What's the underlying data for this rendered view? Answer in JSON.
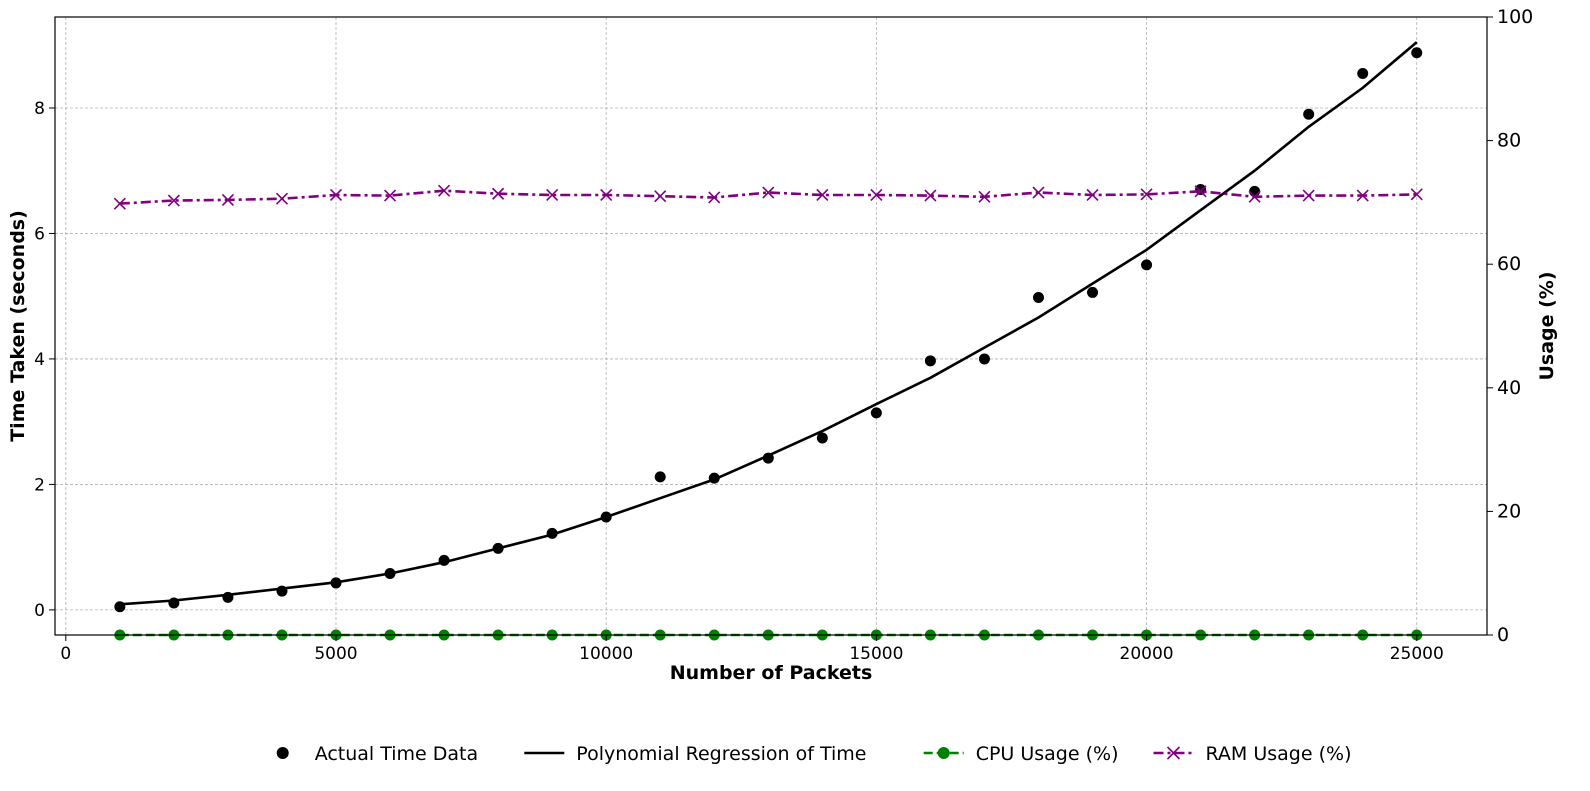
{
  "chart_data": {
    "type": "line",
    "title": "",
    "xlabel": "Number of Packets",
    "ylabel_left": "Time Taken (seconds)",
    "ylabel_right": "Usage (%)",
    "xlim": [
      -200,
      26300
    ],
    "ylim_left": [
      -0.4,
      9.45
    ],
    "ylim_right": [
      0,
      100
    ],
    "xticks": [
      0,
      5000,
      10000,
      15000,
      20000,
      25000
    ],
    "yticks_left": [
      0,
      2,
      4,
      6,
      8
    ],
    "yticks_right": [
      0,
      20,
      40,
      60,
      80,
      100
    ],
    "grid": true,
    "legend_position": "bottom-center",
    "x": [
      1000,
      2000,
      3000,
      4000,
      5000,
      6000,
      7000,
      8000,
      9000,
      10000,
      11000,
      12000,
      13000,
      14000,
      15000,
      16000,
      17000,
      18000,
      19000,
      20000,
      21000,
      22000,
      23000,
      24000,
      25000
    ],
    "series": [
      {
        "name": "Actual Time Data",
        "axis": "left",
        "style": "scatter",
        "color": "#000000",
        "values": [
          0.05,
          0.11,
          0.2,
          0.3,
          0.43,
          0.58,
          0.79,
          0.98,
          1.22,
          1.48,
          2.12,
          2.1,
          2.42,
          2.74,
          3.14,
          3.97,
          4.0,
          4.98,
          5.06,
          5.5,
          6.7,
          6.67,
          7.9,
          8.55,
          8.88
        ]
      },
      {
        "name": "Polynomial Regression of Time",
        "axis": "left",
        "style": "line",
        "color": "#000000",
        "values": [
          0.09,
          0.15,
          0.24,
          0.34,
          0.44,
          0.58,
          0.76,
          0.98,
          1.2,
          1.48,
          1.78,
          2.08,
          2.46,
          2.85,
          3.28,
          3.7,
          4.18,
          4.66,
          5.2,
          5.74,
          6.37,
          7.0,
          7.7,
          8.32,
          9.05
        ]
      },
      {
        "name": "CPU Usage (%)",
        "axis": "right",
        "style": "dashed-marker",
        "color": "#008000",
        "values": [
          0,
          0,
          0,
          0,
          0,
          0,
          0,
          0,
          0,
          0,
          0,
          0,
          0,
          0,
          0,
          0,
          0,
          0,
          0,
          0,
          0,
          0,
          0,
          0,
          0
        ]
      },
      {
        "name": "RAM Usage (%)",
        "axis": "right",
        "style": "dashdot-x",
        "color": "#800080",
        "values": [
          69.8,
          70.3,
          70.4,
          70.6,
          71.2,
          71.1,
          71.9,
          71.4,
          71.2,
          71.2,
          71.0,
          70.8,
          71.6,
          71.2,
          71.2,
          71.1,
          70.9,
          71.6,
          71.2,
          71.3,
          71.8,
          70.9,
          71.1,
          71.1,
          71.3
        ]
      }
    ]
  }
}
